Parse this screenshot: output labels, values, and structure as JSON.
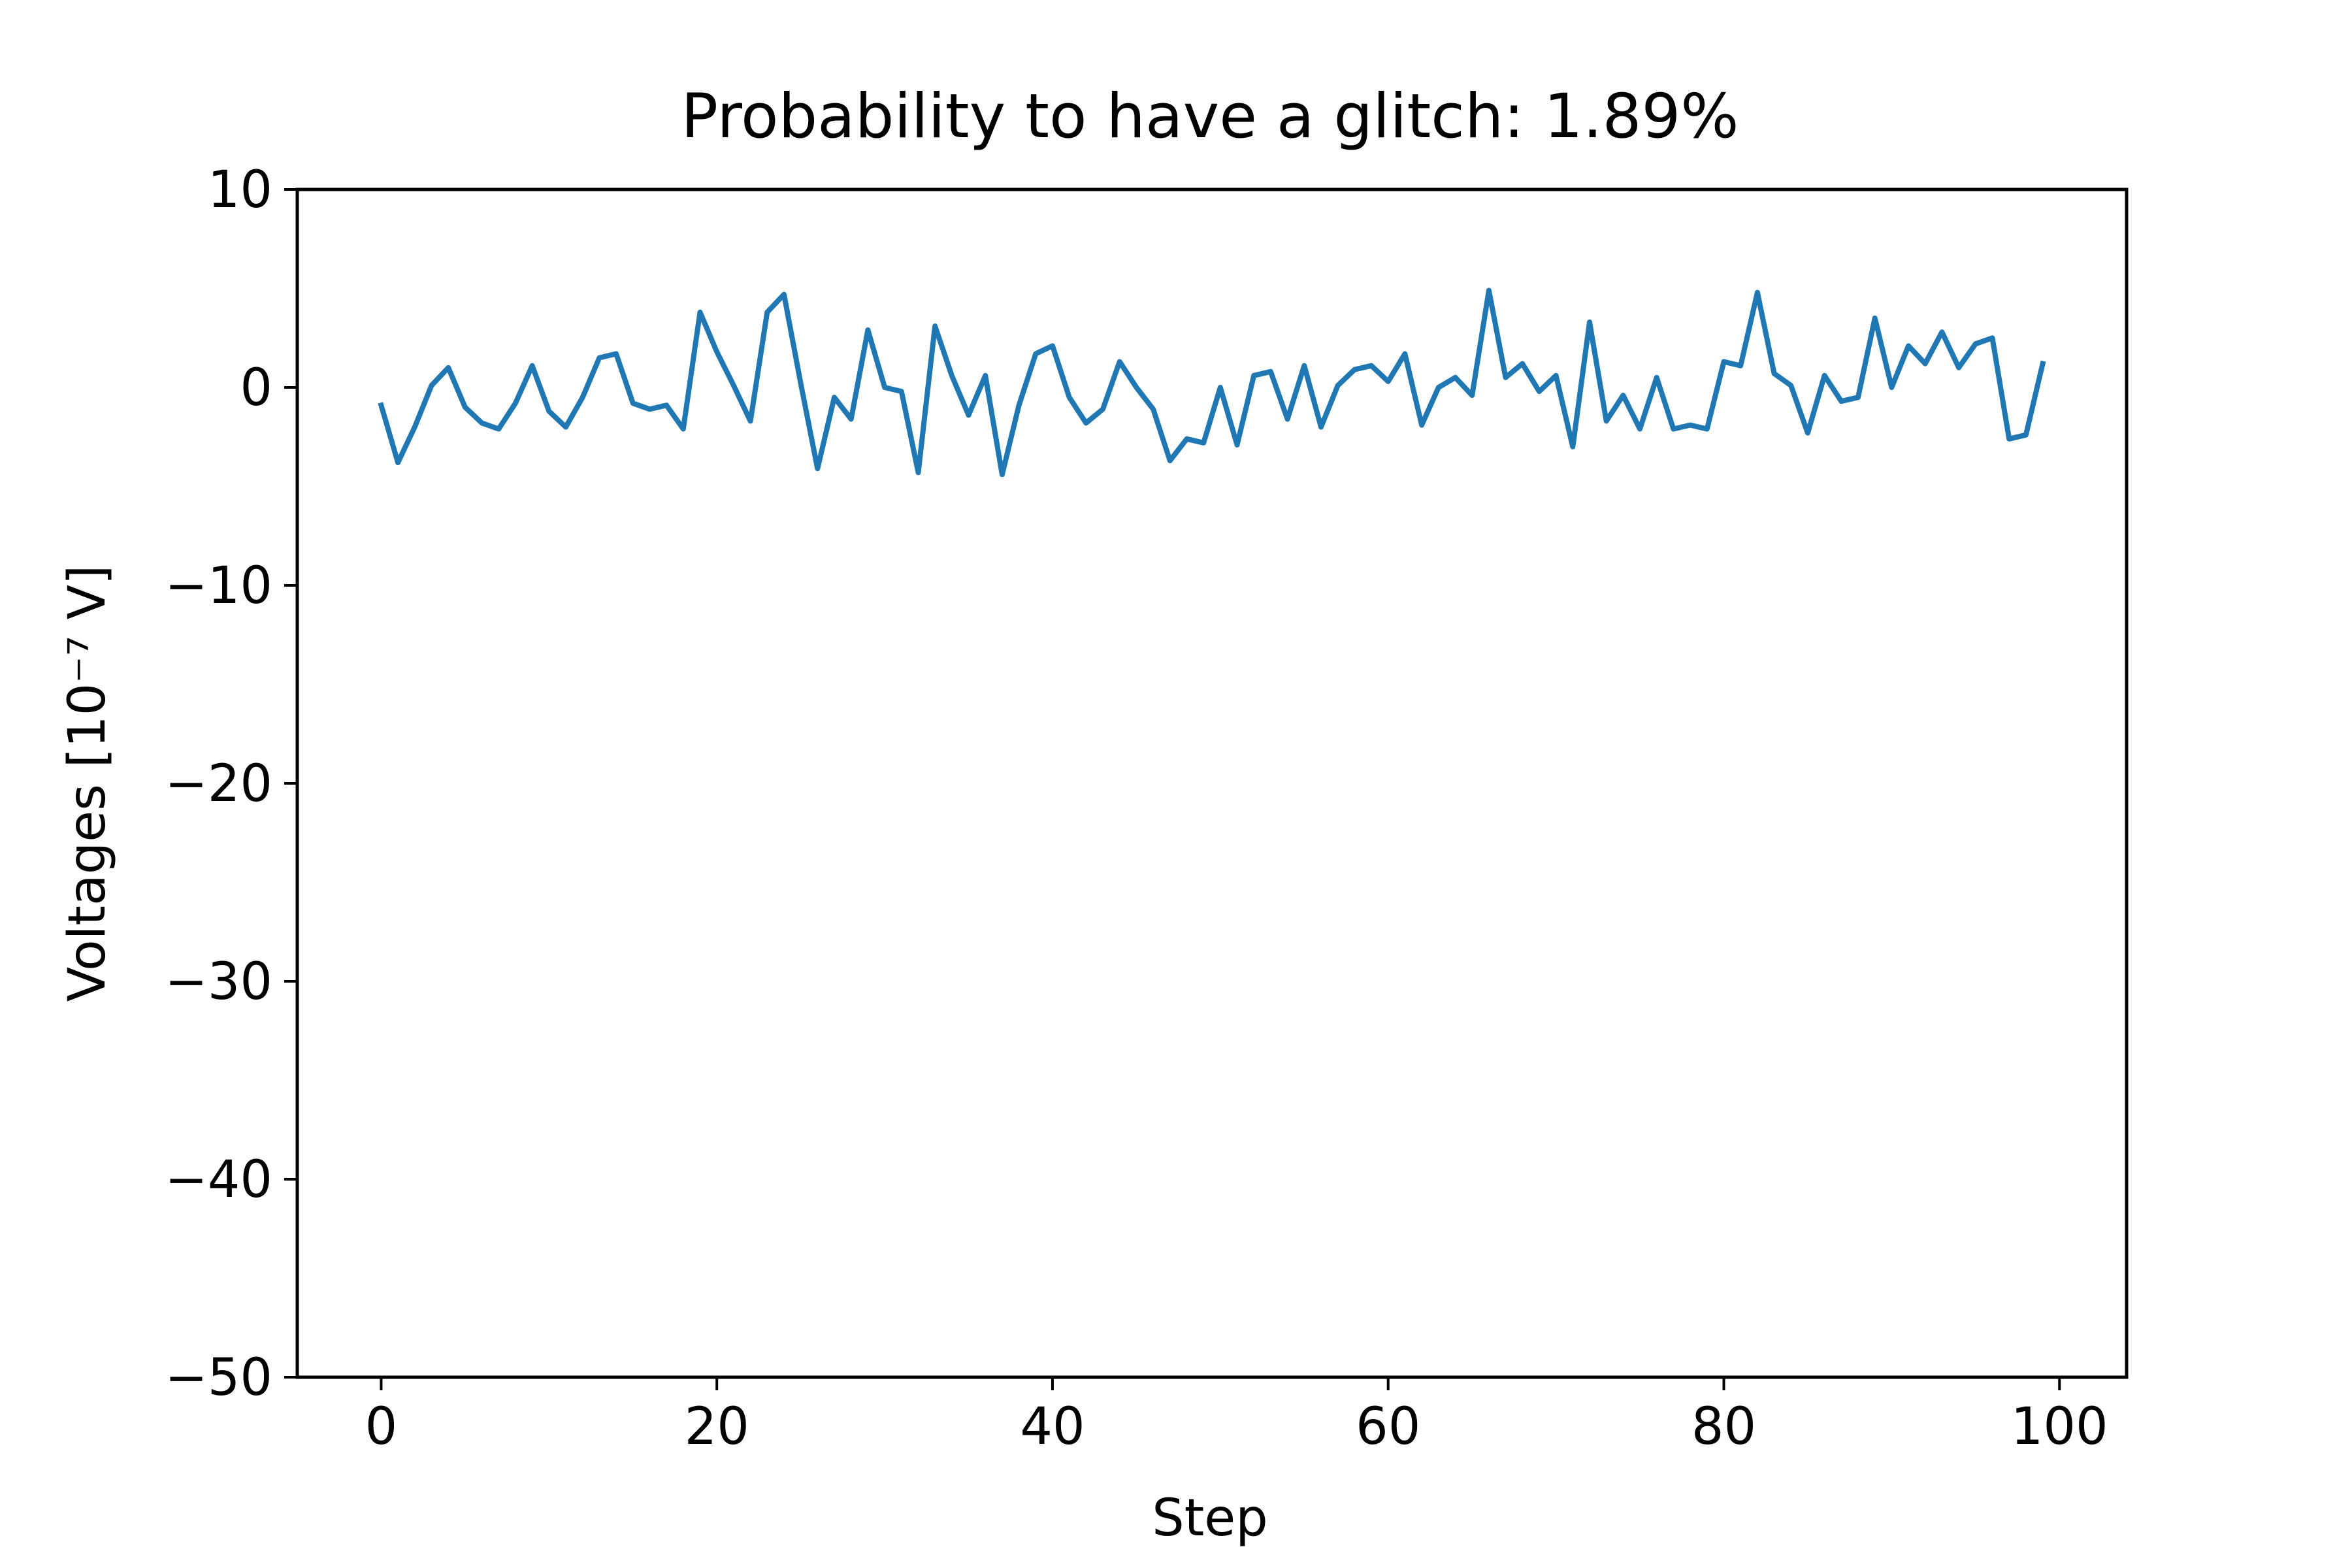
{
  "chart_data": {
    "type": "line",
    "title": "Probability to have a glitch: 1.89%",
    "xlabel": "Step",
    "ylabel": "Voltages [10⁻⁷ V]",
    "xlim": [
      -5,
      104
    ],
    "ylim": [
      -50,
      10
    ],
    "xticks": [
      0,
      20,
      40,
      60,
      80,
      100
    ],
    "xtick_labels": [
      "0",
      "20",
      "40",
      "60",
      "80",
      "100"
    ],
    "yticks": [
      10,
      0,
      -10,
      -20,
      -30,
      -40,
      -50
    ],
    "ytick_labels": [
      "10",
      "0",
      "−10",
      "−20",
      "−30",
      "−40",
      "−50"
    ],
    "grid": false,
    "series": [
      {
        "color": "#1f77b4",
        "x": [
          0,
          1,
          2,
          3,
          4,
          5,
          6,
          7,
          8,
          9,
          10,
          11,
          12,
          13,
          14,
          15,
          16,
          17,
          18,
          19,
          20,
          21,
          22,
          23,
          24,
          25,
          26,
          27,
          28,
          29,
          30,
          31,
          32,
          33,
          34,
          35,
          36,
          37,
          38,
          39,
          40,
          41,
          42,
          43,
          44,
          45,
          46,
          47,
          48,
          49,
          50,
          51,
          52,
          53,
          54,
          55,
          56,
          57,
          58,
          59,
          60,
          61,
          62,
          63,
          64,
          65,
          66,
          67,
          68,
          69,
          70,
          71,
          72,
          73,
          74,
          75,
          76,
          77,
          78,
          79,
          80,
          81,
          82,
          83,
          84,
          85,
          86,
          87,
          88,
          89,
          90,
          91,
          92,
          93,
          94,
          95,
          96,
          97,
          98,
          99
        ],
        "values": [
          -0.9,
          -3.8,
          -2.0,
          0.1,
          1.0,
          -1.0,
          -1.8,
          -2.1,
          -0.8,
          1.1,
          -1.2,
          -2.0,
          -0.5,
          1.5,
          1.7,
          -0.8,
          -1.1,
          -0.9,
          -2.1,
          3.8,
          1.8,
          0.1,
          -1.7,
          3.8,
          4.7,
          0.2,
          -4.1,
          -0.5,
          -1.6,
          2.9,
          0.0,
          -0.2,
          -4.3,
          3.1,
          0.6,
          -1.4,
          0.6,
          -4.4,
          -0.9,
          1.7,
          2.1,
          -0.5,
          -1.8,
          -1.1,
          1.3,
          0.0,
          -1.1,
          -3.7,
          -2.6,
          -2.8,
          0.0,
          -2.9,
          0.6,
          0.8,
          -1.6,
          1.1,
          -2.0,
          0.1,
          0.9,
          1.1,
          0.3,
          1.7,
          -1.9,
          0.0,
          0.5,
          -0.4,
          4.9,
          0.5,
          1.2,
          -0.2,
          0.6,
          -3.0,
          3.3,
          -1.7,
          -0.4,
          -2.1,
          0.5,
          -2.1,
          -1.9,
          -2.1,
          1.3,
          1.1,
          4.8,
          0.7,
          0.1,
          -2.3,
          0.6,
          -0.7,
          -0.5,
          3.5,
          0.0,
          2.1,
          1.2,
          2.8,
          1.0,
          2.2,
          2.5,
          -2.6,
          -2.4,
          1.2
        ]
      }
    ]
  }
}
